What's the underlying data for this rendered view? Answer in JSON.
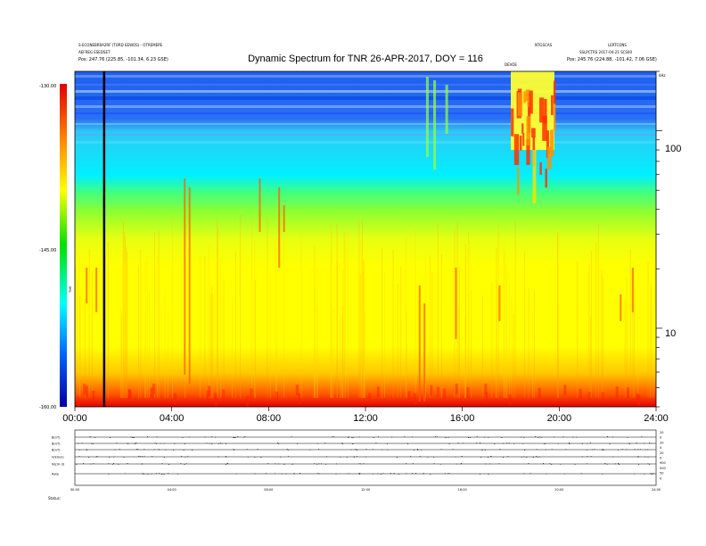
{
  "chart_data": {
    "type": "heatmap",
    "title": "Dynamic Spectrum for TNR 26-APR-2017, DOY = 116",
    "x": {
      "tick_labels": [
        "00:00",
        "04:00",
        "08:00",
        "12:00",
        "16:00",
        "20:00",
        "24:00"
      ],
      "range_hours": [
        0,
        24
      ]
    },
    "y": {
      "scale": "log",
      "range": [
        4,
        200
      ],
      "tick_labels": [
        "100",
        "10"
      ],
      "unit_label": "kHz"
    },
    "colorbar": {
      "range": [
        -160,
        -130
      ],
      "tick_labels": [
        "-130.00",
        "-145.00",
        "-160.00"
      ],
      "label": "TNR"
    },
    "vertical_marker_hours": 1.2,
    "bright_event_hours": [
      18.0,
      19.8
    ],
    "header_left": [
      "S-ECONEBRRA2RF (TORD EEWOS) - OTREMEPE",
      "AEFREG ESEDSET",
      "Pos: 247.76 (225.85, -101.34, 6.23 GSE)"
    ],
    "header_right": [
      "NTGSCAS",
      "LERTCONS",
      "SSLPCTRS 2017-04-21 SCS00",
      "Pos: 245.76 (224.88, -101.42, 7.06 GSE)"
    ],
    "event_label": "DEVOE",
    "lower_panel": {
      "row_labels": [
        "B(nT)",
        "B(nT)",
        "B(nT)",
        "V(km/s)",
        "N(cm-3)",
        "Rate"
      ],
      "right_labels": [
        "20",
        "0",
        "20",
        "0",
        "20",
        "0",
        "900",
        "500",
        "50",
        "0"
      ],
      "x_tick_labels": [
        "00:00",
        "04:00",
        "08:00",
        "12:00",
        "16:00",
        "20:00",
        "24:00"
      ],
      "status_label": "Status:"
    }
  }
}
